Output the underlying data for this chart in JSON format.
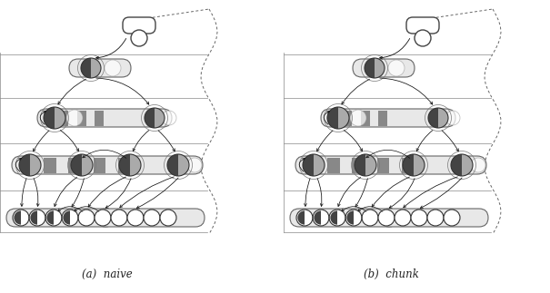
{
  "fig_width": 6.05,
  "fig_height": 3.23,
  "dpi": 100,
  "bg_color": "#ffffff",
  "label_a": "(a)  naive",
  "label_b": "(b)  chunk",
  "label_fontsize": 8.5,
  "dark_gray": "#555555",
  "med_gray": "#888888",
  "light_gray": "#bbbbbb",
  "very_light_gray": "#eeeeee",
  "stripe_dark": "#888888",
  "stripe_light": "#d0d0d0",
  "node_dark": "#444444",
  "node_light": "#aaaaaa",
  "bar_fill": "#e8e8e8",
  "band_fill": "#f4f4f4",
  "line_color": "#888888",
  "arrow_color": "#111111",
  "boundary_color": "#555555"
}
